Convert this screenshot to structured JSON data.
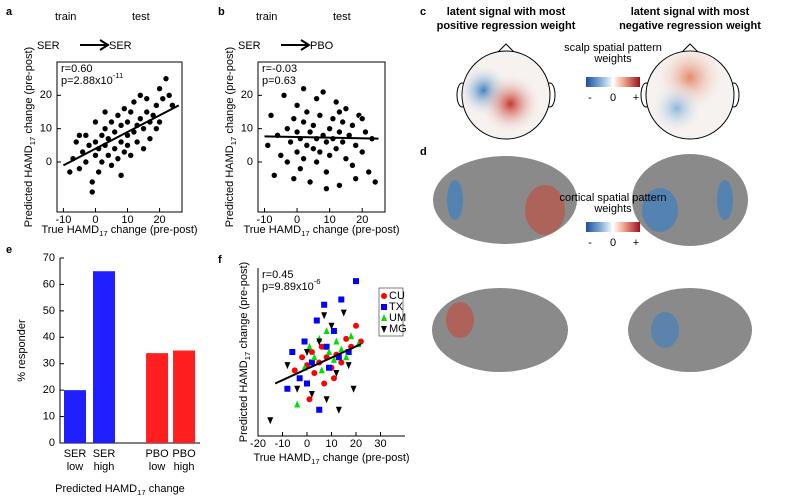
{
  "chart_data": [
    {
      "panel": "a",
      "type": "scatter",
      "color": "#000000",
      "train_test": {
        "train": "train",
        "test": "test",
        "from": "SER",
        "to": "SER"
      },
      "r_text": "r=0.60",
      "p_text": [
        "p=2.88x10",
        "-11"
      ],
      "xlabel": [
        "True HAMD",
        "17",
        " change (pre-post)"
      ],
      "ylabel": [
        "Predicted HAMD",
        "17",
        " change (pre-post)"
      ],
      "xlim": [
        -12,
        27
      ],
      "ylim": [
        -15,
        30
      ],
      "xticks": [
        -10,
        0,
        10,
        20
      ],
      "yticks": [
        0,
        10,
        20
      ],
      "x": [
        -8,
        -7,
        -6,
        -5,
        -4,
        -3,
        -3,
        -2,
        -1,
        -1,
        0,
        0,
        0,
        1,
        1,
        2,
        2,
        3,
        3,
        4,
        4,
        5,
        5,
        6,
        6,
        7,
        7,
        8,
        8,
        9,
        9,
        10,
        10,
        10,
        11,
        11,
        12,
        12,
        13,
        13,
        14,
        14,
        15,
        15,
        16,
        16,
        17,
        17,
        18,
        19,
        19,
        20,
        20,
        21,
        22,
        23,
        24,
        -5,
        3,
        8
      ],
      "values": [
        -3,
        1,
        6,
        -2,
        3,
        0,
        8,
        5,
        -9,
        -6,
        2,
        6,
        12,
        -3,
        4,
        8,
        0,
        5,
        10,
        2,
        7,
        12,
        -1,
        4,
        9,
        14,
        1,
        6,
        11,
        3,
        16,
        8,
        12,
        5,
        15,
        2,
        9,
        18,
        11,
        6,
        13,
        20,
        10,
        4,
        15,
        19,
        12,
        7,
        14,
        17,
        10,
        22,
        12,
        19,
        25,
        20,
        17,
        8,
        15,
        -4
      ],
      "fit": {
        "x": [
          -10,
          26
        ],
        "y": [
          -1,
          17
        ]
      }
    },
    {
      "panel": "b",
      "type": "scatter",
      "color": "#000000",
      "train_test": {
        "train": "train",
        "test": "test",
        "from": "SER",
        "to": "PBO"
      },
      "r_text": "r=-0.03",
      "p_text": [
        "p=0.63"
      ],
      "xlabel": [
        "True HAMD",
        "17",
        " change (pre-post)"
      ],
      "ylabel": [
        "Predicted HAMD",
        "17",
        " change (pre-post)"
      ],
      "xlim": [
        -12,
        27
      ],
      "ylim": [
        -15,
        30
      ],
      "xticks": [
        -10,
        0,
        10,
        20
      ],
      "yticks": [
        0,
        10,
        20
      ],
      "x": [
        -8,
        -7,
        -6,
        -5,
        -4,
        -3,
        -3,
        -2,
        -1,
        -1,
        0,
        0,
        0,
        1,
        1,
        2,
        2,
        3,
        3,
        4,
        4,
        5,
        5,
        6,
        6,
        7,
        7,
        8,
        8,
        9,
        9,
        10,
        10,
        11,
        11,
        12,
        12,
        13,
        13,
        14,
        14,
        15,
        15,
        16,
        17,
        17,
        18,
        19,
        20,
        21,
        22,
        23,
        24,
        -9,
        2,
        6,
        9,
        13,
        18,
        20
      ],
      "values": [
        14,
        -4,
        8,
        2,
        20,
        10,
        0,
        6,
        13,
        -5,
        3,
        9,
        17,
        -2,
        7,
        12,
        1,
        5,
        15,
        9,
        -6,
        4,
        11,
        7,
        0,
        14,
        3,
        8,
        21,
        6,
        -3,
        10,
        2,
        13,
        7,
        18,
        4,
        9,
        -7,
        12,
        6,
        1,
        16,
        8,
        11,
        -1,
        5,
        14,
        3,
        9,
        -3,
        7,
        -6,
        5,
        22,
        19,
        -8,
        15,
        -5,
        13
      ],
      "fit": {
        "x": [
          -10,
          25
        ],
        "y": [
          7.7,
          7
        ]
      }
    },
    {
      "panel": "e",
      "type": "bar",
      "categories": [
        [
          "SER",
          "low"
        ],
        [
          "SER",
          "high"
        ],
        [
          "PBO",
          "low"
        ],
        [
          "PBO",
          "high"
        ]
      ],
      "values": [
        20,
        65,
        34,
        35
      ],
      "colors": [
        "#1f1fff",
        "#1f1fff",
        "#ff1f1f",
        "#ff1f1f"
      ],
      "ylabel": "% responder",
      "xlabel": [
        "Predicted HAMD",
        "17",
        " change"
      ],
      "ylim": [
        0,
        70
      ],
      "yticks": [
        0,
        10,
        20,
        30,
        40,
        50,
        60,
        70
      ]
    },
    {
      "panel": "f",
      "type": "scatter",
      "r_text": "r=0.45",
      "p_text": [
        "p=9.89x10",
        "-6"
      ],
      "xlabel": [
        "True HAMD",
        "17",
        " change (pre-post)"
      ],
      "ylabel": [
        "Predicted HAMD",
        "17",
        " change (pre-post)"
      ],
      "xlim": [
        -20,
        40
      ],
      "ylim": [
        -22,
        42
      ],
      "xticks": [
        -20,
        -10,
        0,
        10,
        20,
        30
      ],
      "legend": "upper right",
      "series": [
        {
          "name": "CU",
          "color": "#ff0000",
          "marker": "o",
          "x": [
            -5,
            -2,
            0,
            1,
            2,
            3,
            5,
            6,
            7,
            8,
            10,
            12,
            14,
            16,
            18,
            20,
            22,
            11
          ],
          "values": [
            3,
            8,
            5,
            -8,
            10,
            2,
            6,
            12,
            -2,
            8,
            4,
            9,
            6,
            15,
            12,
            20,
            14,
            0
          ]
        },
        {
          "name": "TX",
          "color": "#0000ff",
          "marker": "s",
          "x": [
            -8,
            -6,
            -3,
            -1,
            0,
            2,
            4,
            5,
            7,
            8,
            9,
            11,
            13,
            14,
            17,
            20
          ],
          "values": [
            -4,
            10,
            0,
            14,
            -2,
            6,
            22,
            -12,
            28,
            12,
            4,
            18,
            8,
            30,
            10,
            37
          ]
        },
        {
          "name": "UM",
          "color": "#00e000",
          "marker": "^",
          "x": [
            -4,
            -1,
            1,
            3,
            5,
            6,
            8,
            9,
            11,
            12,
            14,
            16,
            18,
            21
          ],
          "values": [
            -10,
            4,
            12,
            8,
            15,
            3,
            18,
            10,
            7,
            14,
            11,
            8,
            16,
            13
          ]
        },
        {
          "name": "MG",
          "color": "#000000",
          "marker": "v",
          "x": [
            -15,
            -8,
            -4,
            0,
            2,
            5,
            7,
            8,
            10,
            12,
            13,
            15,
            17,
            19
          ],
          "values": [
            -16,
            5,
            -4,
            10,
            -6,
            14,
            24,
            -8,
            20,
            2,
            -12,
            25,
            5,
            -4
          ]
        }
      ],
      "fit": {
        "x": [
          -13,
          22
        ],
        "y": [
          -2,
          13
        ]
      }
    }
  ],
  "panel_c": {
    "panel": "c",
    "left_title": [
      "latent signal with most",
      "positive regression weight"
    ],
    "right_title": [
      "latent signal with most",
      "negative regression weight"
    ],
    "colorbar_title": [
      "scalp spatial pattern",
      "weights"
    ],
    "colorbar_labels": [
      "-",
      "0",
      "+"
    ]
  },
  "panel_d": {
    "panel": "d",
    "colorbar_title": [
      "cortical spatial pattern",
      "weights"
    ],
    "colorbar_labels": [
      "-",
      "0",
      "+"
    ]
  }
}
